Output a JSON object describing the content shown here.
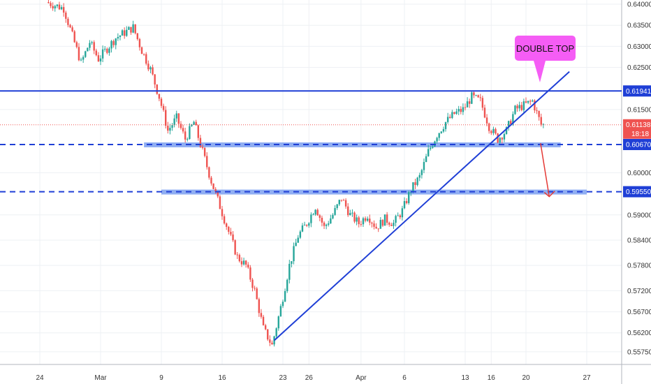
{
  "chart_data": {
    "type": "candlestick",
    "title": "",
    "xlabel": "",
    "ylabel": "",
    "grid": true,
    "colors": {
      "up": "#26a69a",
      "down": "#ef5350",
      "blue": "#1f3fd6",
      "zone": "#7da0f0",
      "callout": "#f55df5",
      "price_badge": "#ef5350",
      "level_badge": "#1f3fd6"
    },
    "x_ticks": [
      {
        "label": "24",
        "date": "2020-02-24"
      },
      {
        "label": "Mar",
        "date": "2020-03-02"
      },
      {
        "label": "9",
        "date": "2020-03-09"
      },
      {
        "label": "16",
        "date": "2020-03-16"
      },
      {
        "label": "23",
        "date": "2020-03-23"
      },
      {
        "label": "26",
        "date": "2020-03-26"
      },
      {
        "label": "Apr",
        "date": "2020-04-01"
      },
      {
        "label": "6",
        "date": "2020-04-06"
      },
      {
        "label": "13",
        "date": "2020-04-13"
      },
      {
        "label": "16",
        "date": "2020-04-16"
      },
      {
        "label": "20",
        "date": "2020-04-20"
      },
      {
        "label": "27",
        "date": "2020-04-27"
      }
    ],
    "y_ticks": [
      "0.64000",
      "0.63500",
      "0.63000",
      "0.62500",
      "0.61500",
      "0.60000",
      "0.59000",
      "0.58400",
      "0.57800",
      "0.57200",
      "0.56700",
      "0.56200",
      "0.55750"
    ],
    "y_range": [
      0.5545,
      0.641
    ],
    "price_path": [
      [
        "2020-02-25",
        0.6405
      ],
      [
        "2020-02-27",
        0.639
      ],
      [
        "2020-02-29",
        0.626
      ],
      [
        "2020-03-01",
        0.631
      ],
      [
        "2020-03-02",
        0.627
      ],
      [
        "2020-03-04",
        0.632
      ],
      [
        "2020-03-06",
        0.6345
      ],
      [
        "2020-03-07",
        0.629
      ],
      [
        "2020-03-08",
        0.6245
      ],
      [
        "2020-03-09",
        0.618
      ],
      [
        "2020-03-10",
        0.61
      ],
      [
        "2020-03-11",
        0.613
      ],
      [
        "2020-03-12",
        0.608
      ],
      [
        "2020-03-13",
        0.612
      ],
      [
        "2020-03-14",
        0.605
      ],
      [
        "2020-03-15",
        0.598
      ],
      [
        "2020-03-16",
        0.592
      ],
      [
        "2020-03-17",
        0.586
      ],
      [
        "2020-03-18",
        0.58
      ],
      [
        "2020-03-19",
        0.578
      ],
      [
        "2020-03-20",
        0.572
      ],
      [
        "2020-03-21",
        0.563
      ],
      [
        "2020-03-22",
        0.559
      ],
      [
        "2020-03-23",
        0.568
      ],
      [
        "2020-03-24",
        0.578
      ],
      [
        "2020-03-25",
        0.585
      ],
      [
        "2020-03-26",
        0.588
      ],
      [
        "2020-03-27",
        0.592
      ],
      [
        "2020-03-28",
        0.587
      ],
      [
        "2020-03-29",
        0.59
      ],
      [
        "2020-03-30",
        0.594
      ],
      [
        "2020-03-31",
        0.59
      ],
      [
        "2020-04-01",
        0.588
      ],
      [
        "2020-04-02",
        0.59
      ],
      [
        "2020-04-03",
        0.587
      ],
      [
        "2020-04-04",
        0.589
      ],
      [
        "2020-04-05",
        0.588
      ],
      [
        "2020-04-06",
        0.591
      ],
      [
        "2020-04-07",
        0.596
      ],
      [
        "2020-04-08",
        0.599
      ],
      [
        "2020-04-09",
        0.605
      ],
      [
        "2020-04-10",
        0.609
      ],
      [
        "2020-04-11",
        0.612
      ],
      [
        "2020-04-12",
        0.614
      ],
      [
        "2020-04-13",
        0.615
      ],
      [
        "2020-04-14",
        0.618
      ],
      [
        "2020-04-15",
        0.617
      ],
      [
        "2020-04-16",
        0.611
      ],
      [
        "2020-04-17",
        0.608
      ],
      [
        "2020-04-18",
        0.61
      ],
      [
        "2020-04-19",
        0.615
      ],
      [
        "2020-04-20",
        0.616
      ],
      [
        "2020-04-21",
        0.617
      ],
      [
        "2020-04-22",
        0.6114
      ]
    ],
    "lines": [
      {
        "name": "resistance",
        "style": "solid",
        "y": 0.61941
      },
      {
        "name": "support-upper",
        "style": "dashed",
        "y": 0.6067,
        "zone": [
          0.6062,
          0.6072
        ],
        "zone_from": "2020-03-07",
        "zone_to": "2020-04-24"
      },
      {
        "name": "support-lower",
        "style": "dashed",
        "y": 0.5955,
        "zone": [
          0.595,
          0.596
        ],
        "zone_from": "2020-03-09",
        "zone_to": "2020-04-27"
      }
    ],
    "trendline": {
      "from": [
        "2020-03-22",
        0.5602
      ],
      "to": [
        "2020-04-25",
        0.624
      ]
    },
    "current_price": {
      "value": 0.61138,
      "label": "0.61138",
      "countdown": "18:18"
    },
    "level_labels": [
      "0.61941",
      "0.60670",
      "0.59550"
    ],
    "annotations": {
      "callout": "DOUBLE TOP"
    },
    "arrow": {
      "from": [
        "2020-04-22",
        0.607
      ],
      "to": [
        "2020-04-23",
        0.595
      ]
    }
  }
}
